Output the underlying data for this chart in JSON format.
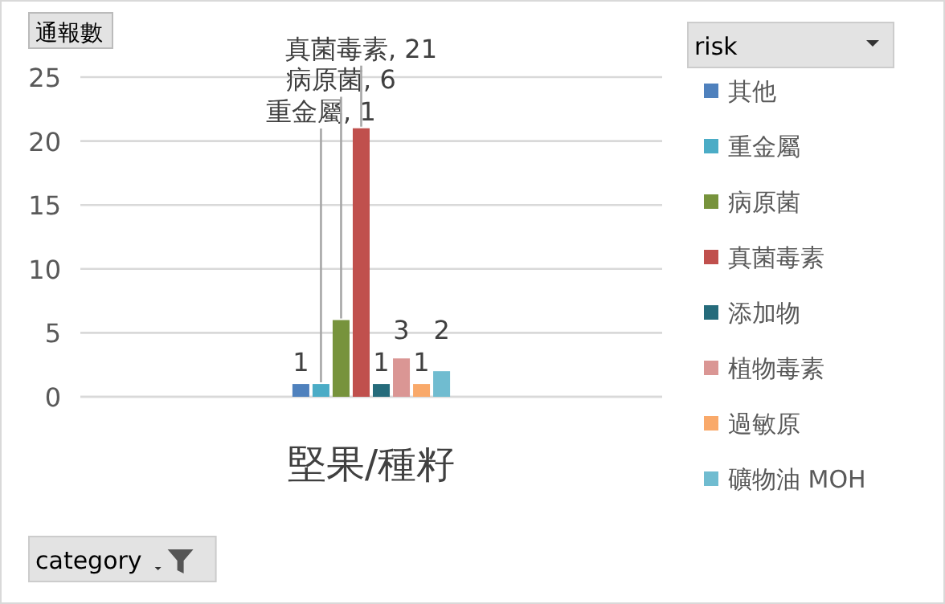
{
  "chart_data": {
    "type": "bar",
    "ylabel": "通報數",
    "legend_title": "risk",
    "annotations": [
      "category"
    ],
    "categories": [
      "堅果/種籽"
    ],
    "series": [
      {
        "name": "其他",
        "color": "#4f81bd",
        "values": [
          1
        ],
        "value_labels": [
          "1"
        ]
      },
      {
        "name": "重金屬",
        "color": "#4bacc6",
        "values": [
          1
        ],
        "value_labels": [
          "重金屬, 1"
        ]
      },
      {
        "name": "病原菌",
        "color": "#77933c",
        "values": [
          6
        ],
        "value_labels": [
          "病原菌, 6"
        ]
      },
      {
        "name": "真菌毒素",
        "color": "#c0504d",
        "values": [
          21
        ],
        "value_labels": [
          "真菌毒素, 21"
        ]
      },
      {
        "name": "添加物",
        "color": "#256b7b",
        "values": [
          1
        ],
        "value_labels": [
          "1"
        ]
      },
      {
        "name": "植物毒素",
        "color": "#da9694",
        "values": [
          3
        ],
        "value_labels": [
          "3"
        ]
      },
      {
        "name": "過敏原",
        "color": "#f9a96a",
        "values": [
          1
        ],
        "value_labels": [
          "1"
        ]
      },
      {
        "name": "礦物油 MOH",
        "color": "#70bcd0",
        "values": [
          2
        ],
        "value_labels": [
          "2"
        ]
      }
    ],
    "ylim": [
      0,
      25
    ],
    "yticks": [
      0,
      5,
      10,
      15,
      20,
      25
    ],
    "grid": "y",
    "legend": "right"
  }
}
